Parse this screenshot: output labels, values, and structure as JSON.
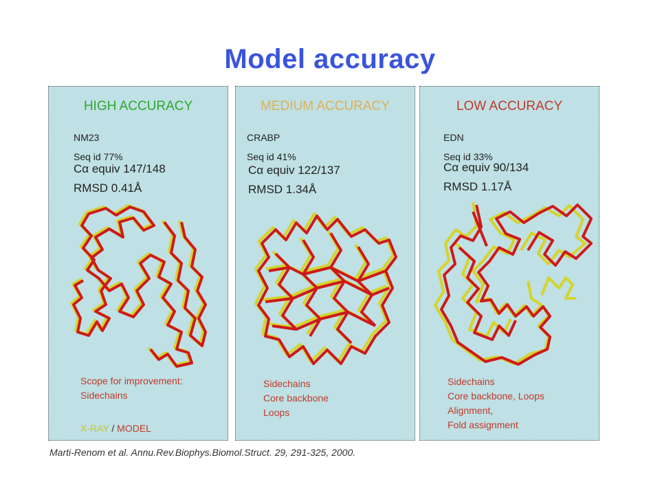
{
  "slide": {
    "title": "Model accuracy",
    "citation": "Marti-Renom et al. Annu.Rev.Biophys.Biomol.Struct. 29, 291-325, 2000."
  },
  "colors": {
    "title": "#3a55d9",
    "panel_bg": "#bfe0e4",
    "high": "#2ea82e",
    "medium": "#e0b055",
    "low": "#c0392b",
    "xray_trace": "#d4d42a",
    "model_trace": "#cc1a1a",
    "note_text": "#c0392b"
  },
  "panels": [
    {
      "heading": "HIGH ACCURACY",
      "protein": "NM23",
      "seqid": "Seq id  77%",
      "ca_equiv": "Cα equiv 147/148",
      "rmsd": "RMSD 0.41Å",
      "notes": [
        "Scope for improvement:",
        "Sidechains"
      ],
      "legend": {
        "xray": "X-RAY",
        "sep": " / ",
        "model": "MODEL"
      }
    },
    {
      "heading": "MEDIUM ACCURACY",
      "protein": "CRABP",
      "seqid": "Seq id  41%",
      "ca_equiv": "Cα equiv 122/137",
      "rmsd": "RMSD 1.34Å",
      "notes": [
        "Sidechains",
        "Core backbone",
        "Loops"
      ]
    },
    {
      "heading": "LOW ACCURACY",
      "protein": "EDN",
      "seqid": "Seq id  33%",
      "ca_equiv": "Cα equiv 90/134",
      "rmsd": "RMSD 1.17Å",
      "notes": [
        "Sidechains",
        "Core backbone, Loops",
        "Alignment,",
        "Fold assignment"
      ]
    }
  ]
}
